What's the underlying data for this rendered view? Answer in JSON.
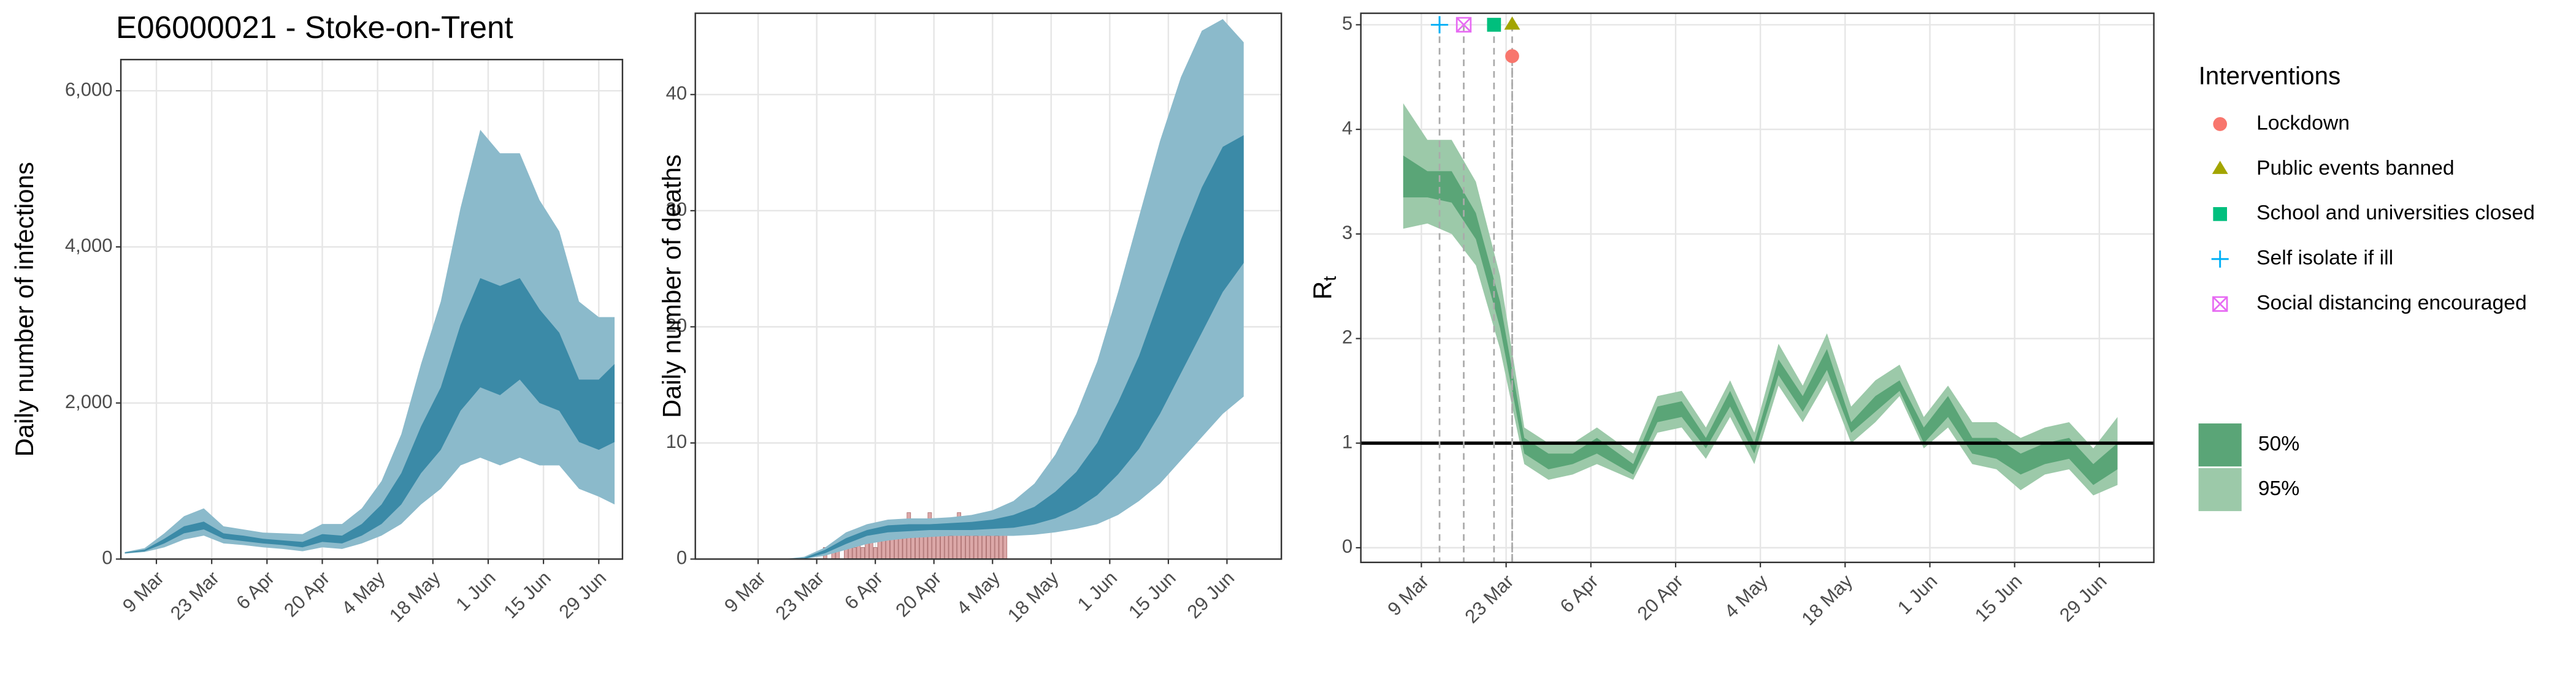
{
  "title": "E06000021 - Stoke-on-Trent",
  "chart_data": [
    {
      "type": "ribbon",
      "ylabel": "Daily number of infections",
      "xlim": [
        "29 Feb",
        "5 Jul"
      ],
      "xticks": [
        "9 Mar",
        "23 Mar",
        "6 Apr",
        "20 Apr",
        "4 May",
        "18 May",
        "1 Jun",
        "15 Jun",
        "29 Jun"
      ],
      "ylim": [
        0,
        6400
      ],
      "yticks": [
        0,
        {
          "value": 2000,
          "label": "2,000"
        },
        {
          "value": 4000,
          "label": "4,000"
        },
        {
          "value": 6000,
          "label": "6,000"
        }
      ],
      "grid": true,
      "x": [
        "1 Mar",
        "6 Mar",
        "11 Mar",
        "16 Mar",
        "21 Mar",
        "26 Mar",
        "31 Mar",
        "5 Apr",
        "10 Apr",
        "15 Apr",
        "20 Apr",
        "25 Apr",
        "30 Apr",
        "5 May",
        "10 May",
        "15 May",
        "20 May",
        "25 May",
        "30 May",
        "4 Jun",
        "9 Jun",
        "14 Jun",
        "19 Jun",
        "24 Jun",
        "29 Jun",
        "3 Jul"
      ],
      "series": [
        {
          "color": "#8bbacb",
          "lower": [
            70,
            90,
            150,
            250,
            300,
            200,
            180,
            150,
            130,
            100,
            150,
            130,
            200,
            300,
            450,
            700,
            900,
            1200,
            1300,
            1200,
            1300,
            1200,
            1200,
            900,
            800,
            700
          ],
          "upper": [
            90,
            140,
            330,
            550,
            650,
            420,
            380,
            340,
            330,
            320,
            450,
            450,
            650,
            1000,
            1600,
            2500,
            3300,
            4500,
            5500,
            5200,
            5200,
            4600,
            4200,
            3300,
            3100,
            3100
          ]
        },
        {
          "color": "#3b8aa7",
          "lower": [
            75,
            100,
            200,
            330,
            380,
            260,
            230,
            200,
            180,
            150,
            220,
            200,
            300,
            450,
            700,
            1100,
            1400,
            1900,
            2200,
            2100,
            2300,
            2000,
            1900,
            1500,
            1400,
            1500
          ],
          "upper": [
            85,
            120,
            260,
            420,
            480,
            330,
            300,
            260,
            240,
            220,
            320,
            300,
            450,
            700,
            1100,
            1700,
            2200,
            3000,
            3600,
            3500,
            3600,
            3200,
            2900,
            2300,
            2300,
            2500
          ]
        }
      ]
    },
    {
      "type": "ribbon",
      "ylabel": "Daily number of deaths",
      "xlim": [
        "23 Feb",
        "12 Jul"
      ],
      "xticks": [
        "9 Mar",
        "23 Mar",
        "6 Apr",
        "20 Apr",
        "4 May",
        "18 May",
        "1 Jun",
        "15 Jun",
        "29 Jun"
      ],
      "ylim": [
        0,
        47
      ],
      "yticks": [
        0,
        10,
        20,
        30,
        40
      ],
      "grid": true,
      "bars": {
        "color": "#dca8a8",
        "x": [
          "25 Mar",
          "26 Mar",
          "27 Mar",
          "28 Mar",
          "29 Mar",
          "30 Mar",
          "31 Mar",
          "1 Apr",
          "2 Apr",
          "3 Apr",
          "4 Apr",
          "5 Apr",
          "6 Apr",
          "7 Apr",
          "8 Apr",
          "9 Apr",
          "10 Apr",
          "11 Apr",
          "12 Apr",
          "13 Apr",
          "14 Apr",
          "15 Apr",
          "16 Apr",
          "17 Apr",
          "18 Apr",
          "19 Apr",
          "20 Apr",
          "21 Apr",
          "22 Apr",
          "23 Apr",
          "24 Apr",
          "25 Apr",
          "26 Apr",
          "27 Apr",
          "28 Apr",
          "29 Apr",
          "30 Apr",
          "1 May",
          "2 May",
          "3 May",
          "4 May",
          "5 May",
          "6 May",
          "7 May"
        ],
        "values": [
          1,
          0,
          1,
          1,
          0,
          2,
          1,
          1,
          2,
          1,
          2,
          3,
          1,
          2,
          2,
          3,
          2,
          2,
          3,
          2,
          4,
          2,
          3,
          3,
          2,
          4,
          3,
          2,
          3,
          3,
          2,
          3,
          4,
          3,
          2,
          3,
          2,
          3,
          3,
          2,
          3,
          2,
          4,
          3
        ]
      },
      "x": [
        "15 Mar",
        "20 Mar",
        "25 Mar",
        "30 Mar",
        "4 Apr",
        "9 Apr",
        "14 Apr",
        "19 Apr",
        "24 Apr",
        "29 Apr",
        "4 May",
        "9 May",
        "14 May",
        "19 May",
        "24 May",
        "29 May",
        "3 Jun",
        "8 Jun",
        "13 Jun",
        "18 Jun",
        "23 Jun",
        "28 Jun",
        "3 Jul"
      ],
      "series": [
        {
          "color": "#8bbacb",
          "lower": [
            0,
            0,
            0.3,
            0.8,
            1.3,
            1.6,
            1.8,
            1.9,
            2,
            2,
            2,
            2,
            2.1,
            2.3,
            2.6,
            3,
            3.8,
            5,
            6.5,
            8.5,
            10.5,
            12.5,
            14
          ],
          "upper": [
            0,
            0.2,
            1,
            2.3,
            3,
            3.4,
            3.5,
            3.5,
            3.6,
            3.8,
            4.2,
            5,
            6.5,
            9,
            12.5,
            17,
            23,
            29.5,
            36,
            41.5,
            45.5,
            46.5,
            44.5
          ]
        },
        {
          "color": "#3b8aa7",
          "lower": [
            0,
            0,
            0.5,
            1.3,
            2,
            2.3,
            2.4,
            2.5,
            2.5,
            2.5,
            2.6,
            2.7,
            3,
            3.5,
            4.3,
            5.5,
            7.3,
            9.5,
            12.5,
            16,
            19.5,
            23,
            25.5
          ],
          "upper": [
            0,
            0.1,
            0.8,
            1.8,
            2.5,
            2.9,
            3,
            3,
            3.1,
            3.2,
            3.4,
            3.8,
            4.5,
            5.8,
            7.5,
            10,
            13.5,
            17.5,
            22.5,
            27.5,
            32,
            35.5,
            36.5
          ]
        }
      ]
    },
    {
      "type": "ribbon",
      "ylabel": "R",
      "ylabel_sub": "t",
      "xlim": [
        "28 Feb",
        "8 Jul"
      ],
      "xticks": [
        "9 Mar",
        "23 Mar",
        "6 Apr",
        "20 Apr",
        "4 May",
        "18 May",
        "1 Jun",
        "15 Jun",
        "29 Jun"
      ],
      "ylim": [
        -0.14,
        5.11
      ],
      "yticks": [
        0,
        1,
        2,
        3,
        4,
        5
      ],
      "grid": true,
      "reference_line": 1,
      "x": [
        "6 Mar",
        "10 Mar",
        "14 Mar",
        "18 Mar",
        "22 Mar",
        "26 Mar",
        "30 Mar",
        "3 Apr",
        "7 Apr",
        "13 Apr",
        "17 Apr",
        "21 Apr",
        "25 Apr",
        "29 Apr",
        "3 May",
        "7 May",
        "11 May",
        "15 May",
        "19 May",
        "23 May",
        "27 May",
        "31 May",
        "4 Jun",
        "8 Jun",
        "12 Jun",
        "16 Jun",
        "20 Jun",
        "24 Jun",
        "28 Jun",
        "2 Jul"
      ],
      "series": [
        {
          "name": "95%",
          "color": "#9cc9a9",
          "lower": [
            3.05,
            3.1,
            3.0,
            2.7,
            1.9,
            0.8,
            0.65,
            0.7,
            0.8,
            0.65,
            1.1,
            1.15,
            0.85,
            1.25,
            0.8,
            1.55,
            1.2,
            1.6,
            1.0,
            1.2,
            1.45,
            0.95,
            1.15,
            0.8,
            0.75,
            0.55,
            0.7,
            0.75,
            0.5,
            0.6
          ],
          "upper": [
            4.25,
            3.9,
            3.9,
            3.5,
            2.6,
            1.15,
            1.0,
            1.0,
            1.15,
            0.9,
            1.45,
            1.5,
            1.15,
            1.6,
            1.1,
            1.95,
            1.55,
            2.05,
            1.35,
            1.6,
            1.75,
            1.25,
            1.55,
            1.2,
            1.2,
            1.05,
            1.15,
            1.2,
            0.95,
            1.25
          ]
        },
        {
          "name": "50%",
          "color": "#5aa577",
          "lower": [
            3.35,
            3.35,
            3.3,
            2.95,
            2.1,
            0.9,
            0.75,
            0.8,
            0.9,
            0.7,
            1.2,
            1.25,
            0.95,
            1.35,
            0.9,
            1.65,
            1.3,
            1.7,
            1.1,
            1.3,
            1.5,
            1.0,
            1.25,
            0.9,
            0.85,
            0.7,
            0.8,
            0.85,
            0.6,
            0.75
          ],
          "upper": [
            3.75,
            3.6,
            3.6,
            3.2,
            2.35,
            1.05,
            0.9,
            0.9,
            1.05,
            0.8,
            1.35,
            1.4,
            1.05,
            1.5,
            1.0,
            1.8,
            1.45,
            1.9,
            1.2,
            1.45,
            1.6,
            1.15,
            1.45,
            1.05,
            1.05,
            0.9,
            1.0,
            1.05,
            0.8,
            1.0
          ]
        }
      ],
      "interventions": {
        "title": "Interventions",
        "items": [
          {
            "name": "Lockdown",
            "date": "24 Mar",
            "y": 4.7,
            "color": "#f8766d",
            "shape": "circle"
          },
          {
            "name": "Public events banned",
            "date": "24 Mar",
            "y": 5,
            "color": "#a3a500",
            "shape": "triangle"
          },
          {
            "name": "School and universities closed",
            "date": "21 Mar",
            "y": 5,
            "color": "#00bf7d",
            "shape": "square"
          },
          {
            "name": "Self isolate if ill",
            "date": "12 Mar",
            "y": 5,
            "color": "#00b0f6",
            "shape": "plus"
          },
          {
            "name": "Social distancing encouraged",
            "date": "16 Mar",
            "y": 5,
            "color": "#e76bf3",
            "shape": "boxx"
          }
        ]
      }
    }
  ]
}
